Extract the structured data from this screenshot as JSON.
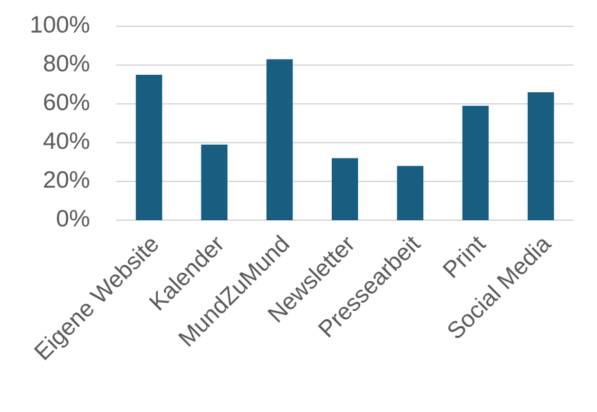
{
  "chart_data": {
    "type": "bar",
    "categories": [
      "Eigene Website",
      "Kalender",
      "MundZuMund",
      "Newsletter",
      "Pressearbeit",
      "Print",
      "Social Media"
    ],
    "values": [
      75,
      39,
      83,
      32,
      28,
      59,
      66
    ],
    "color": "#175e80",
    "ylim": [
      0,
      100
    ],
    "yticks": [
      {
        "value": 0,
        "label": "0%"
      },
      {
        "value": 20,
        "label": "20%"
      },
      {
        "value": 40,
        "label": "40%"
      },
      {
        "value": 60,
        "label": "60%"
      },
      {
        "value": 80,
        "label": "80%"
      },
      {
        "value": 100,
        "label": "100%"
      }
    ],
    "grid": true
  }
}
